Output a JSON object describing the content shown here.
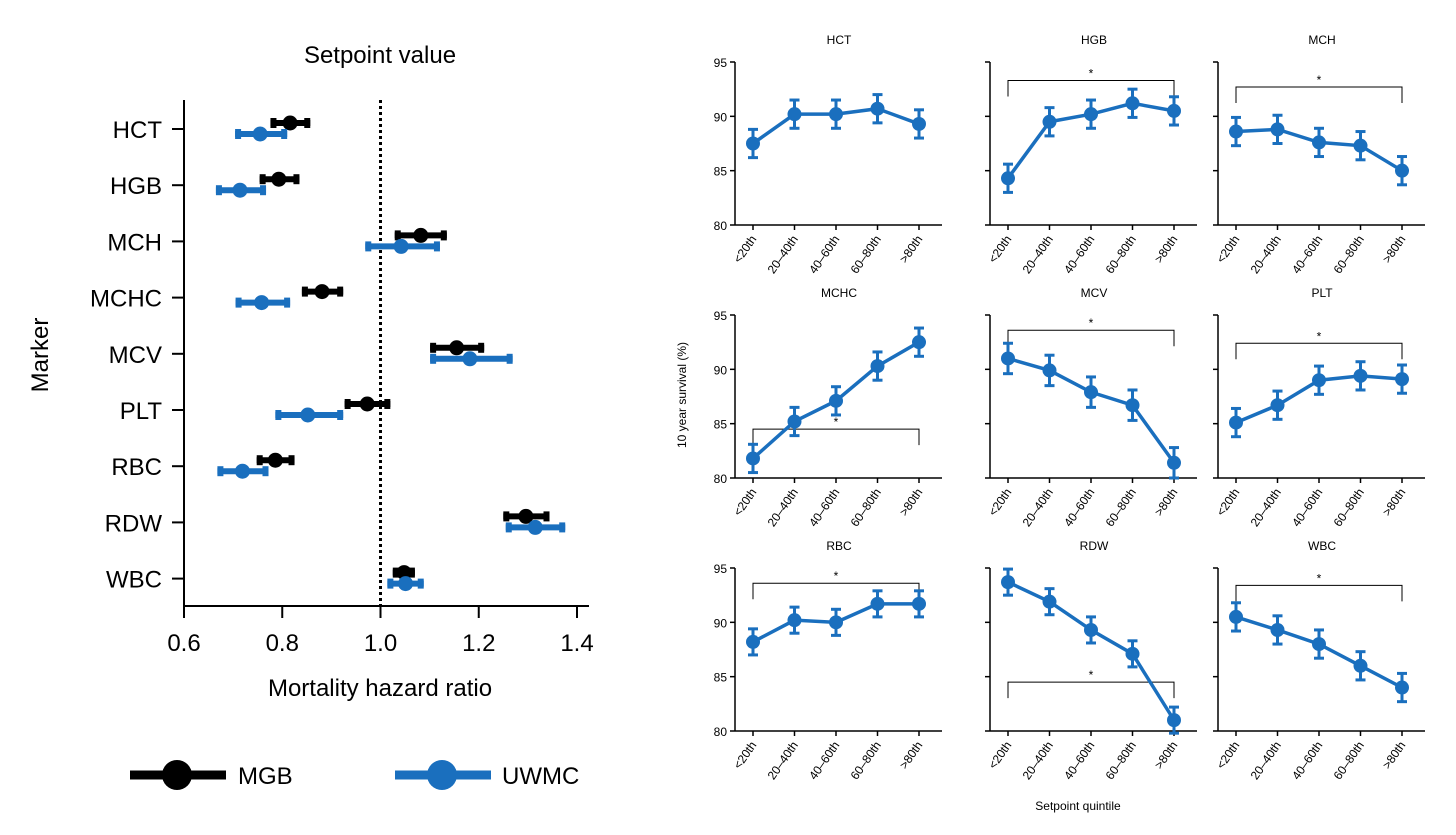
{
  "colors": {
    "MGB": "#000000",
    "UWMC": "#1a6fbe"
  },
  "chart_data": [
    {
      "type": "forest",
      "title": "Setpoint value",
      "xlabel": "Mortality hazard ratio",
      "ylabel": "Marker",
      "xlim": [
        0.6,
        1.4
      ],
      "xticks": [
        "0.6",
        "0.8",
        "1.0",
        "1.2",
        "1.4"
      ],
      "xtick_values": [
        0.6,
        0.8,
        1.0,
        1.2,
        1.4
      ],
      "reference_line": 1.0,
      "categories": [
        "HCT",
        "HGB",
        "MCH",
        "MCHC",
        "MCV",
        "PLT",
        "RBC",
        "RDW",
        "WBC"
      ],
      "legend": {
        "placement": "bottom",
        "entries": [
          "MGB",
          "UWMC"
        ]
      },
      "series": [
        {
          "name": "MGB",
          "values": [
            0.816,
            0.793,
            1.082,
            0.881,
            1.155,
            0.973,
            0.786,
            1.296,
            1.048
          ],
          "lower": [
            0.776,
            0.754,
            1.029,
            0.84,
            1.101,
            0.927,
            0.748,
            1.25,
            1.025
          ],
          "upper": [
            0.857,
            0.835,
            1.135,
            0.924,
            1.211,
            1.02,
            0.825,
            1.344,
            1.07
          ]
        },
        {
          "name": "UWMC",
          "values": [
            0.755,
            0.714,
            1.042,
            0.758,
            1.182,
            0.852,
            0.719,
            1.315,
            1.051
          ],
          "lower": [
            0.704,
            0.665,
            0.969,
            0.705,
            1.101,
            0.786,
            0.668,
            1.255,
            1.014
          ],
          "upper": [
            0.81,
            0.767,
            1.121,
            0.816,
            1.269,
            0.924,
            0.772,
            1.376,
            1.088
          ]
        }
      ]
    },
    {
      "type": "line",
      "ylabel": "10 year survival (%)",
      "xlabel": "Setpoint quintile",
      "ylim": [
        80,
        95
      ],
      "yticks": [
        "80",
        "85",
        "90",
        "95"
      ],
      "ytick_values": [
        80,
        85,
        90,
        95
      ],
      "categories": [
        "<20th",
        "20–40th",
        "40–60th",
        "60–80th",
        ">80th"
      ],
      "significance_label": "*",
      "panels": [
        {
          "title": "HCT",
          "values": [
            87.5,
            90.2,
            90.2,
            90.7,
            89.3
          ],
          "error": 1.3,
          "bracket": null
        },
        {
          "title": "HGB",
          "values": [
            84.3,
            89.5,
            90.2,
            91.2,
            90.5
          ],
          "error": 1.3,
          "bracket": 93.3
        },
        {
          "title": "MCH",
          "values": [
            88.6,
            88.8,
            87.6,
            87.3,
            85.0
          ],
          "error": 1.3,
          "bracket": 92.7
        },
        {
          "title": "MCHC",
          "values": [
            81.8,
            85.2,
            87.1,
            90.3,
            92.5
          ],
          "error": 1.3,
          "bracket": 84.5
        },
        {
          "title": "MCV",
          "values": [
            91.0,
            89.9,
            87.9,
            86.7,
            81.4
          ],
          "error": 1.4,
          "bracket": 93.6
        },
        {
          "title": "PLT",
          "values": [
            85.1,
            86.7,
            89.0,
            89.4,
            89.1
          ],
          "error": 1.3,
          "bracket": 92.4
        },
        {
          "title": "RBC",
          "values": [
            88.2,
            90.2,
            90.0,
            91.7,
            91.7
          ],
          "error": 1.2,
          "bracket": 93.6
        },
        {
          "title": "RDW",
          "values": [
            93.7,
            91.9,
            89.3,
            87.1,
            81.0
          ],
          "error": 1.2,
          "bracket": 84.5
        },
        {
          "title": "WBC",
          "values": [
            90.5,
            89.3,
            88.0,
            86.0,
            84.0
          ],
          "error": 1.3,
          "bracket": 93.4
        }
      ]
    }
  ]
}
